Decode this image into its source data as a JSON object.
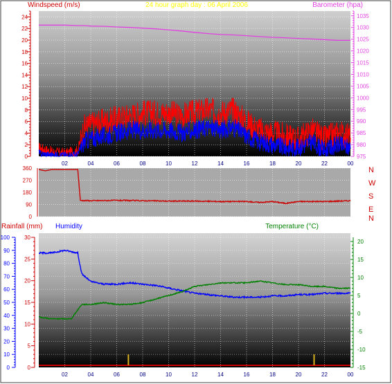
{
  "header": {
    "left_label": "Windspeed (m/s)",
    "title": "24 hour graph day : 06 April 2006",
    "right_label": "Barometer (hpa)"
  },
  "colors": {
    "wind_red": "#ff0000",
    "wind_blue": "#0000ff",
    "barometer": "#e040e0",
    "direction": "#cc0000",
    "humidity": "#0000ff",
    "temperature": "#008000",
    "rain": "#cc0000",
    "rain_bar": "#d8b020",
    "left_axis": "#cc0000",
    "time_axis": "#000080",
    "title": "#ffff00"
  },
  "chart_data": [
    {
      "type": "line",
      "name": "wind-and-barometer",
      "title": "24 hour graph day : 06 April 2006",
      "ylabel": "Windspeed (m/s)",
      "y2label": "Barometer (hpa)",
      "ylim": [
        0,
        25
      ],
      "y2lim": [
        975,
        1037
      ],
      "yticks": [
        0,
        2,
        4,
        6,
        8,
        10,
        12,
        14,
        16,
        18,
        20,
        22,
        24
      ],
      "y2ticks": [
        975,
        980,
        985,
        990,
        995,
        1000,
        1005,
        1010,
        1015,
        1020,
        1025,
        1030,
        1035
      ],
      "xticks": [
        "02",
        "04",
        "06",
        "08",
        "10",
        "12",
        "14",
        "16",
        "18",
        "20",
        "22",
        "00"
      ],
      "grid": true,
      "x": [
        0,
        1,
        2,
        3,
        3.5,
        4,
        5,
        6,
        7,
        8,
        9,
        10,
        11,
        12,
        13,
        14,
        15,
        16,
        17,
        18,
        19,
        20,
        21,
        22,
        23,
        24
      ],
      "series": [
        {
          "name": "gust",
          "color": "#ff0000",
          "values": [
            1.5,
            0.8,
            0.5,
            1.0,
            5.0,
            5.5,
            6.0,
            6.5,
            7.0,
            7.5,
            7.5,
            7.5,
            7.0,
            7.5,
            8.0,
            7.5,
            8.0,
            6.0,
            4.5,
            4.0,
            3.5,
            3.0,
            4.5,
            3.0,
            4.0,
            3.5
          ]
        },
        {
          "name": "average",
          "color": "#0000ff",
          "values": [
            0.5,
            0.2,
            0.2,
            0.3,
            2.5,
            3.0,
            3.5,
            4.0,
            4.5,
            4.5,
            4.5,
            4.5,
            4.0,
            4.5,
            5.0,
            4.5,
            5.0,
            3.5,
            2.5,
            2.0,
            1.5,
            1.5,
            2.5,
            1.0,
            2.0,
            1.5
          ]
        },
        {
          "name": "barometer",
          "axis": "right",
          "color": "#e040e0",
          "values": [
            1031.0,
            1031.0,
            1031.0,
            1030.8,
            1030.8,
            1030.6,
            1030.5,
            1030.2,
            1030.0,
            1029.7,
            1029.4,
            1029.0,
            1028.5,
            1027.9,
            1027.4,
            1027.0,
            1026.8,
            1026.5,
            1026.1,
            1025.8,
            1025.6,
            1025.3,
            1025.1,
            1024.8,
            1024.5,
            1024.5
          ]
        }
      ]
    },
    {
      "type": "line",
      "name": "wind-direction",
      "ylim": [
        0,
        360
      ],
      "yticks": [
        0,
        90,
        180,
        270,
        360
      ],
      "compass": [
        "N",
        "W",
        "S",
        "E",
        "N"
      ],
      "x": [
        0,
        0.5,
        1,
        1.5,
        2,
        2.5,
        3,
        3.2,
        4,
        6,
        8,
        10,
        12,
        14,
        16,
        17,
        18,
        19,
        20,
        22,
        24
      ],
      "series": [
        {
          "name": "direction",
          "color": "#cc0000",
          "values": [
            350,
            340,
            350,
            350,
            350,
            350,
            350,
            120,
            118,
            120,
            118,
            115,
            115,
            112,
            112,
            105,
            112,
            98,
            112,
            112,
            118
          ]
        }
      ]
    },
    {
      "type": "line",
      "name": "rain-humidity-temperature",
      "ylabel": "Rainfall (mm)",
      "y1label": "Humidity",
      "y2label": "Temperature (°C)",
      "humidity_lim": [
        0,
        100
      ],
      "humidity_ticks": [
        0,
        10,
        20,
        30,
        40,
        50,
        60,
        70,
        80,
        90,
        100
      ],
      "rain_lim": [
        0,
        30
      ],
      "rain_ticks": [
        0,
        5,
        10,
        15,
        20,
        25,
        30
      ],
      "temp_lim": [
        -15,
        20
      ],
      "temp_ticks": [
        -15,
        -10,
        -5,
        0,
        5,
        10,
        15,
        20
      ],
      "xticks": [
        "02",
        "04",
        "06",
        "08",
        "10",
        "12",
        "14",
        "16",
        "18",
        "20",
        "22",
        "00"
      ],
      "x": [
        0,
        1,
        2,
        2.5,
        3,
        3.3,
        4,
        5,
        6,
        7,
        8,
        9,
        10,
        11,
        12,
        13,
        14,
        15,
        16,
        17,
        18,
        19,
        20,
        21,
        22,
        23,
        24
      ],
      "series": [
        {
          "name": "humidity",
          "color": "#0000ff",
          "values": [
            88,
            88,
            90,
            89,
            88,
            72,
            66,
            64,
            64,
            65,
            64,
            63,
            61,
            59,
            57,
            56,
            55,
            54,
            54,
            54,
            55,
            55,
            56,
            56,
            57,
            57,
            57
          ]
        },
        {
          "name": "temperature",
          "color": "#008000",
          "values": [
            -1,
            -1.5,
            -1.5,
            -1.5,
            1,
            2.5,
            2.5,
            3,
            2.5,
            2.5,
            3,
            4,
            5,
            6,
            7.5,
            8,
            8.5,
            8.5,
            8.5,
            9,
            8.5,
            8,
            8,
            7.5,
            7.5,
            7,
            7
          ]
        }
      ],
      "rain_events": [
        {
          "x": 6.9,
          "value": 3
        },
        {
          "x": 21.2,
          "value": 3
        }
      ]
    }
  ]
}
